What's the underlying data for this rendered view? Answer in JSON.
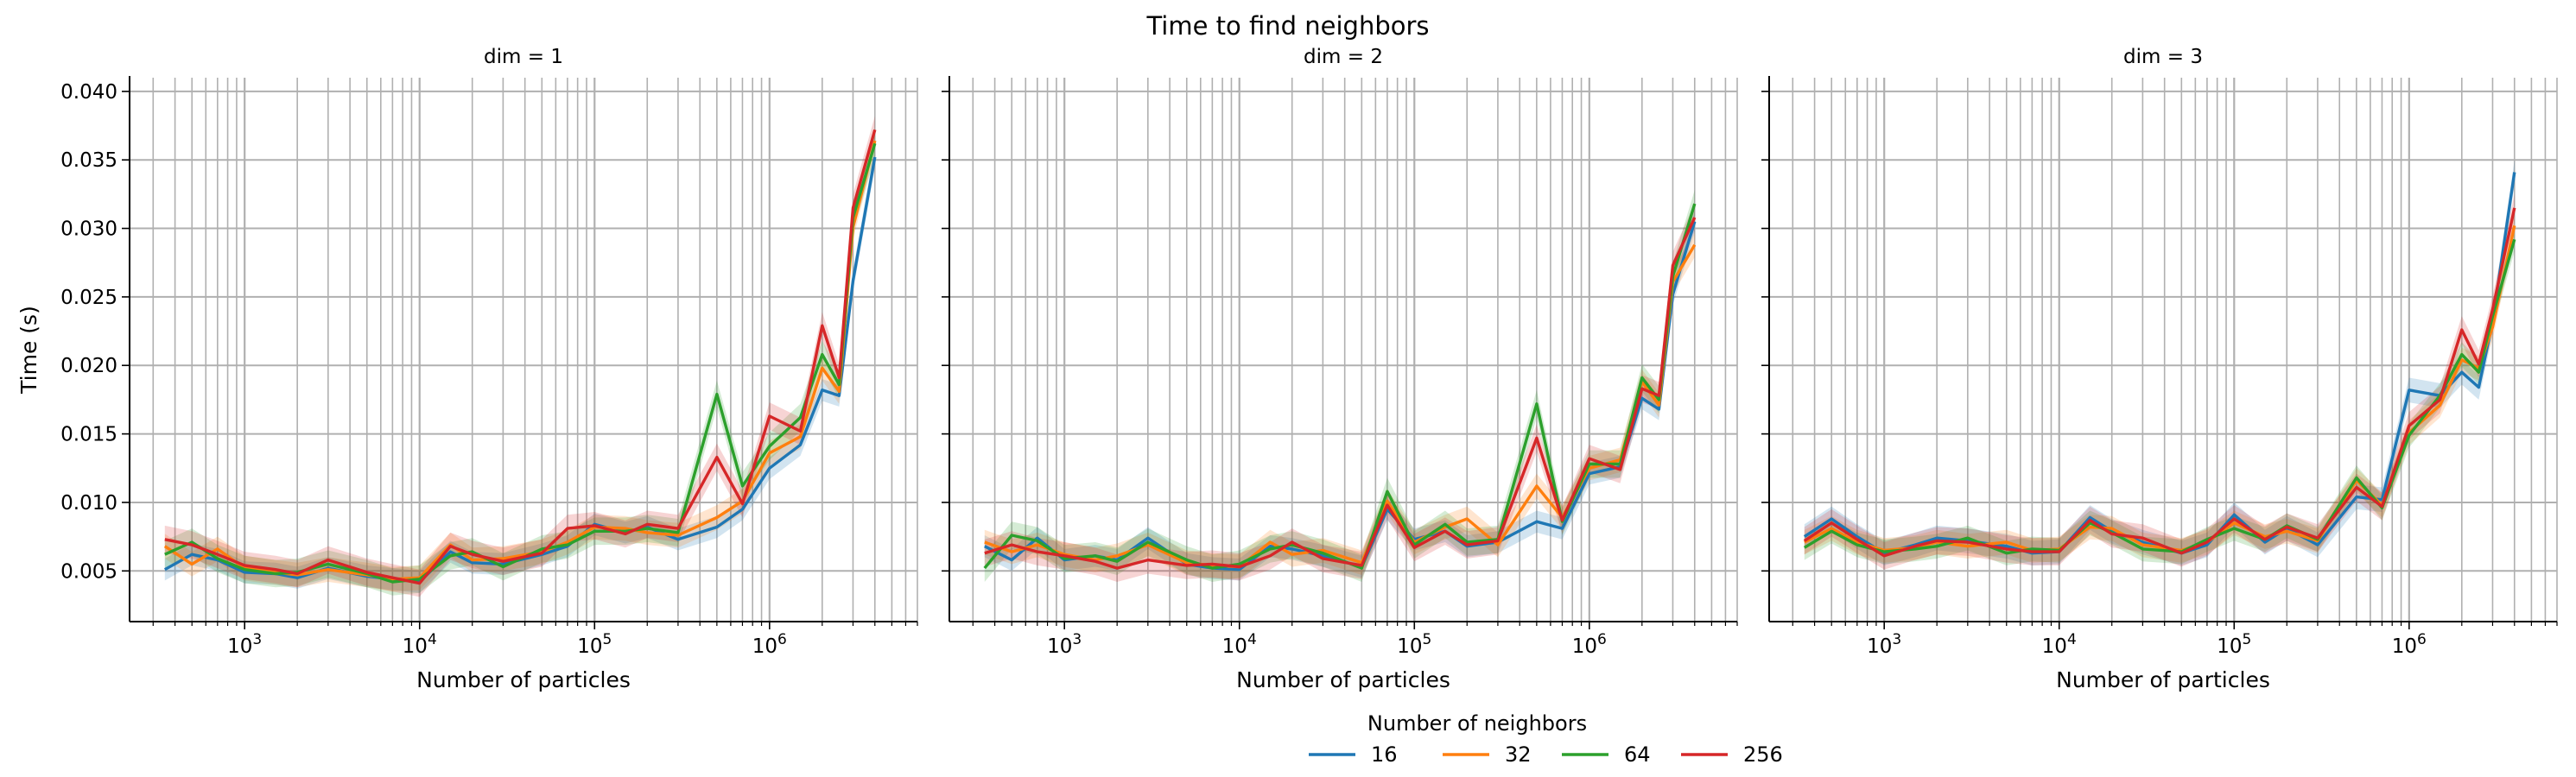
{
  "figure": {
    "title": "Time to find neighbors",
    "legend_title": "Number of neighbors",
    "legend_placement": "bottom-center"
  },
  "chart_data": [
    {
      "type": "line",
      "panel_title": "dim = 1",
      "xlabel": "Number of particles",
      "ylabel": "Time (s)",
      "xscale": "log",
      "xlim": [
        220,
        7000000
      ],
      "ylim": [
        0.0013,
        0.041
      ],
      "x_ticks": [
        "10^3",
        "10^4",
        "10^5",
        "10^6"
      ],
      "y_ticks": [
        "0.005",
        "0.010",
        "0.015",
        "0.020",
        "0.025",
        "0.030",
        "0.035",
        "0.040"
      ],
      "grid": true,
      "series": [
        {
          "name": "16",
          "color": "#1f77b4",
          "x": [
            350,
            500,
            700,
            1000,
            1500,
            2000,
            3000,
            5000,
            7000,
            10000,
            15000,
            20000,
            30000,
            50000,
            70000,
            100000,
            150000,
            200000,
            300000,
            500000,
            700000,
            1000000,
            1500000,
            2000000,
            2500000,
            3000000,
            4000000
          ],
          "y": [
            0.0051,
            0.0062,
            0.0058,
            0.0049,
            0.0048,
            0.0045,
            0.0052,
            0.0046,
            0.0044,
            0.0042,
            0.0064,
            0.0056,
            0.0055,
            0.0062,
            0.0068,
            0.0084,
            0.0078,
            0.0082,
            0.0073,
            0.0082,
            0.0095,
            0.0125,
            0.0142,
            0.0182,
            0.0178,
            0.0262,
            0.0352
          ],
          "ci": 0.0008
        },
        {
          "name": "32",
          "color": "#ff7f0e",
          "x": [
            350,
            500,
            700,
            1000,
            1500,
            2000,
            3000,
            5000,
            7000,
            10000,
            15000,
            20000,
            30000,
            50000,
            70000,
            100000,
            150000,
            200000,
            300000,
            500000,
            700000,
            1000000,
            1500000,
            2000000,
            2500000,
            3000000,
            4000000
          ],
          "y": [
            0.0068,
            0.0055,
            0.0066,
            0.0052,
            0.0049,
            0.0047,
            0.0051,
            0.0047,
            0.0044,
            0.0045,
            0.0069,
            0.0058,
            0.0059,
            0.0064,
            0.0071,
            0.0082,
            0.0081,
            0.0078,
            0.0076,
            0.0089,
            0.0101,
            0.0136,
            0.0148,
            0.0198,
            0.0181,
            0.0301,
            0.0364
          ],
          "ci": 0.0009
        },
        {
          "name": "64",
          "color": "#2ca02c",
          "x": [
            350,
            500,
            700,
            1000,
            1500,
            2000,
            3000,
            5000,
            7000,
            10000,
            15000,
            20000,
            30000,
            50000,
            70000,
            100000,
            150000,
            200000,
            300000,
            500000,
            700000,
            1000000,
            1500000,
            2000000,
            2500000,
            3000000,
            4000000
          ],
          "y": [
            0.0062,
            0.0071,
            0.0059,
            0.0051,
            0.0048,
            0.0049,
            0.0055,
            0.0048,
            0.0042,
            0.0044,
            0.0061,
            0.0064,
            0.0053,
            0.0066,
            0.0069,
            0.0079,
            0.0079,
            0.0081,
            0.0078,
            0.0179,
            0.0112,
            0.0141,
            0.0162,
            0.0208,
            0.0186,
            0.0308,
            0.0362
          ],
          "ci": 0.001
        },
        {
          "name": "256",
          "color": "#d62728",
          "x": [
            350,
            500,
            700,
            1000,
            1500,
            2000,
            3000,
            5000,
            7000,
            10000,
            15000,
            20000,
            30000,
            50000,
            70000,
            100000,
            150000,
            200000,
            300000,
            500000,
            700000,
            1000000,
            1500000,
            2000000,
            2500000,
            3000000,
            4000000
          ],
          "y": [
            0.0073,
            0.0069,
            0.0062,
            0.0054,
            0.0051,
            0.0048,
            0.0058,
            0.0049,
            0.0045,
            0.0041,
            0.0068,
            0.0062,
            0.0057,
            0.0063,
            0.0081,
            0.0083,
            0.0077,
            0.0084,
            0.0081,
            0.0133,
            0.0099,
            0.0163,
            0.0152,
            0.0229,
            0.0191,
            0.0315,
            0.0372
          ],
          "ci": 0.001
        }
      ]
    },
    {
      "type": "line",
      "panel_title": "dim = 2",
      "xlabel": "Number of particles",
      "xscale": "log",
      "xlim": [
        220,
        7000000
      ],
      "ylim": [
        0.0013,
        0.041
      ],
      "x_ticks": [
        "10^3",
        "10^4",
        "10^5",
        "10^6"
      ],
      "grid": true,
      "series": [
        {
          "name": "16",
          "color": "#1f77b4",
          "x": [
            350,
            500,
            700,
            1000,
            1500,
            2000,
            3000,
            5000,
            7000,
            10000,
            15000,
            20000,
            30000,
            50000,
            70000,
            100000,
            150000,
            200000,
            300000,
            500000,
            700000,
            1000000,
            1500000,
            2000000,
            2500000,
            3000000,
            4000000
          ],
          "y": [
            0.0068,
            0.0058,
            0.0074,
            0.0058,
            0.0061,
            0.0058,
            0.0074,
            0.0055,
            0.0052,
            0.0051,
            0.0068,
            0.0066,
            0.0061,
            0.0053,
            0.0095,
            0.0073,
            0.0079,
            0.0068,
            0.0071,
            0.0086,
            0.0081,
            0.0121,
            0.0126,
            0.0176,
            0.0168,
            0.0252,
            0.0305
          ],
          "ci": 0.0008
        },
        {
          "name": "32",
          "color": "#ff7f0e",
          "x": [
            350,
            500,
            700,
            1000,
            1500,
            2000,
            3000,
            5000,
            7000,
            10000,
            15000,
            20000,
            30000,
            50000,
            70000,
            100000,
            150000,
            200000,
            300000,
            500000,
            700000,
            1000000,
            1500000,
            2000000,
            2500000,
            3000000,
            4000000
          ],
          "y": [
            0.0071,
            0.0064,
            0.0069,
            0.0062,
            0.0058,
            0.0061,
            0.0069,
            0.0056,
            0.0054,
            0.0053,
            0.0071,
            0.0062,
            0.0065,
            0.0056,
            0.0101,
            0.0071,
            0.0082,
            0.0088,
            0.0069,
            0.0112,
            0.0089,
            0.0125,
            0.0131,
            0.0188,
            0.0171,
            0.0261,
            0.0288
          ],
          "ci": 0.0009
        },
        {
          "name": "64",
          "color": "#2ca02c",
          "x": [
            350,
            500,
            700,
            1000,
            1500,
            2000,
            3000,
            5000,
            7000,
            10000,
            15000,
            20000,
            30000,
            50000,
            70000,
            100000,
            150000,
            200000,
            300000,
            500000,
            700000,
            1000000,
            1500000,
            2000000,
            2500000,
            3000000,
            4000000
          ],
          "y": [
            0.0052,
            0.0076,
            0.0072,
            0.0059,
            0.0061,
            0.0057,
            0.0071,
            0.0058,
            0.0052,
            0.0055,
            0.0066,
            0.0069,
            0.0063,
            0.0052,
            0.0108,
            0.0069,
            0.0084,
            0.0071,
            0.0073,
            0.0172,
            0.0086,
            0.0128,
            0.0128,
            0.0191,
            0.0175,
            0.0265,
            0.0318
          ],
          "ci": 0.001
        },
        {
          "name": "256",
          "color": "#d62728",
          "x": [
            350,
            500,
            700,
            1000,
            1500,
            2000,
            3000,
            5000,
            7000,
            10000,
            15000,
            20000,
            30000,
            50000,
            70000,
            100000,
            150000,
            200000,
            300000,
            500000,
            700000,
            1000000,
            1500000,
            2000000,
            2500000,
            3000000,
            4000000
          ],
          "y": [
            0.0063,
            0.0069,
            0.0064,
            0.0061,
            0.0057,
            0.0052,
            0.0058,
            0.0054,
            0.0055,
            0.0053,
            0.0061,
            0.0071,
            0.0059,
            0.0054,
            0.0098,
            0.0067,
            0.0079,
            0.0069,
            0.0072,
            0.0147,
            0.0087,
            0.0132,
            0.0124,
            0.0183,
            0.0178,
            0.0273,
            0.0308
          ],
          "ci": 0.001
        }
      ]
    },
    {
      "type": "line",
      "panel_title": "dim = 3",
      "xlabel": "Number of particles",
      "xscale": "log",
      "xlim": [
        220,
        7000000
      ],
      "ylim": [
        0.0013,
        0.041
      ],
      "x_ticks": [
        "10^3",
        "10^4",
        "10^5",
        "10^6"
      ],
      "grid": true,
      "series": [
        {
          "name": "16",
          "color": "#1f77b4",
          "x": [
            350,
            500,
            700,
            1000,
            1500,
            2000,
            3000,
            5000,
            7000,
            10000,
            15000,
            20000,
            30000,
            50000,
            70000,
            100000,
            150000,
            200000,
            300000,
            500000,
            700000,
            1000000,
            1500000,
            2000000,
            2500000,
            3000000,
            4000000
          ],
          "y": [
            0.0075,
            0.0088,
            0.0075,
            0.0063,
            0.0069,
            0.0074,
            0.0072,
            0.0068,
            0.0063,
            0.0064,
            0.0089,
            0.0079,
            0.0071,
            0.0063,
            0.0069,
            0.0091,
            0.0071,
            0.0081,
            0.0069,
            0.0104,
            0.0102,
            0.0182,
            0.0178,
            0.0195,
            0.0184,
            0.0232,
            0.0341
          ],
          "ci": 0.0009
        },
        {
          "name": "32",
          "color": "#ff7f0e",
          "x": [
            350,
            500,
            700,
            1000,
            1500,
            2000,
            3000,
            5000,
            7000,
            10000,
            15000,
            20000,
            30000,
            50000,
            70000,
            100000,
            150000,
            200000,
            300000,
            500000,
            700000,
            1000000,
            1500000,
            2000000,
            2500000,
            3000000,
            4000000
          ],
          "y": [
            0.0071,
            0.0081,
            0.0071,
            0.0065,
            0.0067,
            0.0071,
            0.0068,
            0.0071,
            0.0065,
            0.0066,
            0.0082,
            0.0081,
            0.0069,
            0.0065,
            0.0071,
            0.0085,
            0.0075,
            0.0079,
            0.0072,
            0.0116,
            0.0098,
            0.0151,
            0.0171,
            0.0204,
            0.0198,
            0.0228,
            0.0302
          ],
          "ci": 0.0009
        },
        {
          "name": "64",
          "color": "#2ca02c",
          "x": [
            350,
            500,
            700,
            1000,
            1500,
            2000,
            3000,
            5000,
            7000,
            10000,
            15000,
            20000,
            30000,
            50000,
            70000,
            100000,
            150000,
            200000,
            300000,
            500000,
            700000,
            1000000,
            1500000,
            2000000,
            2500000,
            3000000,
            4000000
          ],
          "y": [
            0.0067,
            0.0079,
            0.0069,
            0.0064,
            0.0066,
            0.0068,
            0.0074,
            0.0063,
            0.0066,
            0.0065,
            0.0085,
            0.0078,
            0.0066,
            0.0064,
            0.0073,
            0.0081,
            0.0073,
            0.0083,
            0.0073,
            0.0118,
            0.0096,
            0.0149,
            0.0178,
            0.0208,
            0.0195,
            0.0236,
            0.0292
          ],
          "ci": 0.0009
        },
        {
          "name": "256",
          "color": "#d62728",
          "x": [
            350,
            500,
            700,
            1000,
            1500,
            2000,
            3000,
            5000,
            7000,
            10000,
            15000,
            20000,
            30000,
            50000,
            70000,
            100000,
            150000,
            200000,
            300000,
            500000,
            700000,
            1000000,
            1500000,
            2000000,
            2500000,
            3000000,
            4000000
          ],
          "y": [
            0.0072,
            0.0085,
            0.0073,
            0.0061,
            0.0068,
            0.0072,
            0.0071,
            0.0066,
            0.0064,
            0.0064,
            0.0087,
            0.0077,
            0.0074,
            0.0063,
            0.0071,
            0.0088,
            0.0073,
            0.0082,
            0.0074,
            0.0111,
            0.0097,
            0.0156,
            0.0175,
            0.0226,
            0.0201,
            0.0241,
            0.0315
          ],
          "ci": 0.001
        }
      ]
    }
  ]
}
